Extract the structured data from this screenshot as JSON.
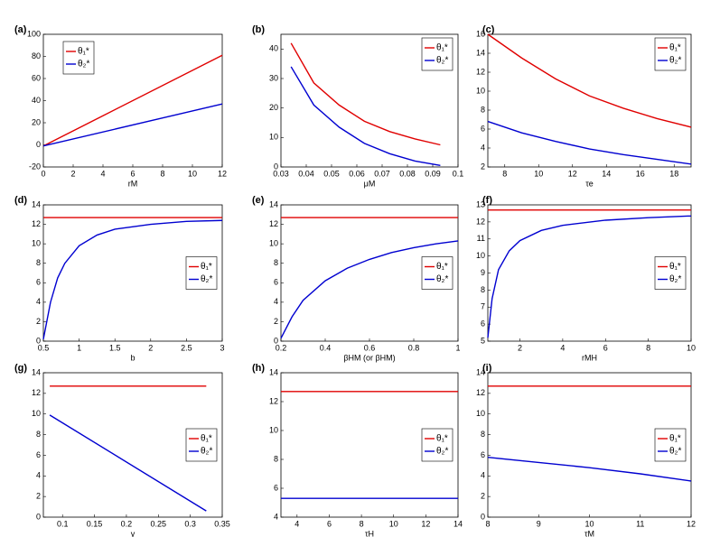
{
  "chart_data": [
    {
      "type": "line",
      "panel": "(a)",
      "xlabel": "rM",
      "xlim": [
        0,
        12
      ],
      "xticks": [
        0,
        2,
        4,
        6,
        8,
        10,
        12
      ],
      "ylim": [
        -20,
        100
      ],
      "yticks": [
        -20,
        0,
        20,
        40,
        60,
        80,
        100
      ],
      "legend": "upper left",
      "x": [
        0,
        12
      ],
      "series": [
        {
          "name": "θ₁*",
          "color": "#e00000",
          "values": [
            -1,
            81
          ]
        },
        {
          "name": "θ₂*",
          "color": "#0000d0",
          "values": [
            -1,
            37
          ]
        }
      ]
    },
    {
      "type": "line",
      "panel": "(b)",
      "xlabel": "μM",
      "xlim": [
        0.03,
        0.1
      ],
      "xticks": [
        0.03,
        0.04,
        0.05,
        0.06,
        0.07,
        0.08,
        0.09,
        0.1
      ],
      "ylim": [
        0,
        45
      ],
      "yticks": [
        0,
        10,
        20,
        30,
        40
      ],
      "legend": "upper right",
      "x": [
        0.034,
        0.043,
        0.053,
        0.063,
        0.073,
        0.083,
        0.093
      ],
      "series": [
        {
          "name": "θ₁*",
          "color": "#e00000",
          "values": [
            42,
            28.5,
            21,
            15.5,
            12,
            9.5,
            7.5
          ]
        },
        {
          "name": "θ₂*",
          "color": "#0000d0",
          "values": [
            34,
            21,
            13.5,
            8,
            4.5,
            2,
            0.5
          ]
        }
      ]
    },
    {
      "type": "line",
      "panel": "(c)",
      "xlabel": "τe",
      "xlim": [
        7,
        19
      ],
      "xticks": [
        8,
        10,
        12,
        14,
        16,
        18
      ],
      "ylim": [
        2,
        16
      ],
      "yticks": [
        2,
        4,
        6,
        8,
        10,
        12,
        14,
        16
      ],
      "legend": "upper right",
      "x": [
        7,
        9,
        11,
        13,
        15,
        17,
        19
      ],
      "series": [
        {
          "name": "θ₁*",
          "color": "#e00000",
          "values": [
            16,
            13.5,
            11.3,
            9.5,
            8.2,
            7.1,
            6.2
          ]
        },
        {
          "name": "θ₂*",
          "color": "#0000d0",
          "values": [
            6.8,
            5.6,
            4.7,
            3.9,
            3.3,
            2.8,
            2.3
          ]
        }
      ]
    },
    {
      "type": "line",
      "panel": "(d)",
      "xlabel": "b",
      "xlim": [
        0.5,
        3
      ],
      "xticks": [
        0.5,
        1,
        1.5,
        2,
        2.5,
        3
      ],
      "ylim": [
        0,
        14
      ],
      "yticks": [
        0,
        2,
        4,
        6,
        8,
        10,
        12,
        14
      ],
      "legend": "center right",
      "x": [
        0.5,
        0.6,
        0.7,
        0.8,
        1,
        1.25,
        1.5,
        2,
        2.5,
        3
      ],
      "series": [
        {
          "name": "θ₁*",
          "color": "#e00000",
          "values": [
            12.7,
            12.7,
            12.7,
            12.7,
            12.7,
            12.7,
            12.7,
            12.7,
            12.7,
            12.7
          ]
        },
        {
          "name": "θ₂*",
          "color": "#0000d0",
          "values": [
            0.2,
            4,
            6.5,
            8,
            9.8,
            10.9,
            11.5,
            12,
            12.3,
            12.4
          ]
        }
      ]
    },
    {
      "type": "line",
      "panel": "(e)",
      "xlabel": "βHM (or βHM)",
      "xlim": [
        0.2,
        1
      ],
      "xticks": [
        0.2,
        0.4,
        0.6,
        0.8,
        1
      ],
      "ylim": [
        0,
        14
      ],
      "yticks": [
        0,
        2,
        4,
        6,
        8,
        10,
        12,
        14
      ],
      "legend": "center right",
      "x": [
        0.2,
        0.25,
        0.3,
        0.4,
        0.5,
        0.6,
        0.7,
        0.8,
        0.9,
        1
      ],
      "series": [
        {
          "name": "θ₁*",
          "color": "#e00000",
          "values": [
            12.7,
            12.7,
            12.7,
            12.7,
            12.7,
            12.7,
            12.7,
            12.7,
            12.7,
            12.7
          ]
        },
        {
          "name": "θ₂*",
          "color": "#0000d0",
          "values": [
            0.3,
            2.5,
            4.2,
            6.2,
            7.5,
            8.4,
            9.1,
            9.6,
            10,
            10.3
          ]
        }
      ]
    },
    {
      "type": "line",
      "panel": "(f)",
      "xlabel": "rMH",
      "xlim": [
        0.5,
        10
      ],
      "xticks": [
        2,
        4,
        6,
        8,
        10
      ],
      "ylim": [
        5,
        13
      ],
      "yticks": [
        5,
        6,
        7,
        8,
        9,
        10,
        11,
        12,
        13
      ],
      "legend": "center right",
      "x": [
        0.5,
        0.7,
        1,
        1.5,
        2,
        3,
        4,
        6,
        8,
        10
      ],
      "series": [
        {
          "name": "θ₁*",
          "color": "#e00000",
          "values": [
            12.7,
            12.7,
            12.7,
            12.7,
            12.7,
            12.7,
            12.7,
            12.7,
            12.7,
            12.7
          ]
        },
        {
          "name": "θ₂*",
          "color": "#0000d0",
          "values": [
            5.2,
            7.5,
            9.2,
            10.3,
            10.9,
            11.5,
            11.8,
            12.1,
            12.25,
            12.35
          ]
        }
      ]
    },
    {
      "type": "line",
      "panel": "(g)",
      "xlabel": "γ",
      "xlim": [
        0.07,
        0.35
      ],
      "xticks": [
        0.1,
        0.15,
        0.2,
        0.25,
        0.3,
        0.35
      ],
      "ylim": [
        0,
        14
      ],
      "yticks": [
        0,
        2,
        4,
        6,
        8,
        10,
        12,
        14
      ],
      "legend": "center right",
      "x": [
        0.08,
        0.325
      ],
      "series": [
        {
          "name": "θ₁*",
          "color": "#e00000",
          "values": [
            12.7,
            12.7
          ]
        },
        {
          "name": "θ₂*",
          "color": "#0000d0",
          "values": [
            9.9,
            0.6
          ]
        }
      ]
    },
    {
      "type": "line",
      "panel": "(h)",
      "xlabel": "τH",
      "xlim": [
        3,
        14
      ],
      "xticks": [
        4,
        6,
        8,
        10,
        12,
        14
      ],
      "ylim": [
        4,
        14
      ],
      "yticks": [
        4,
        6,
        8,
        10,
        12,
        14
      ],
      "legend": "center right",
      "x": [
        3,
        14
      ],
      "series": [
        {
          "name": "θ₁*",
          "color": "#e00000",
          "values": [
            12.7,
            12.7
          ]
        },
        {
          "name": "θ₂*",
          "color": "#0000d0",
          "values": [
            5.3,
            5.3
          ]
        }
      ]
    },
    {
      "type": "line",
      "panel": "(i)",
      "xlabel": "τM",
      "xlim": [
        8,
        12
      ],
      "xticks": [
        8,
        9,
        10,
        11,
        12
      ],
      "ylim": [
        0,
        14
      ],
      "yticks": [
        0,
        2,
        4,
        6,
        8,
        10,
        12,
        14
      ],
      "legend": "center right",
      "x": [
        8,
        9,
        10,
        11,
        12
      ],
      "series": [
        {
          "name": "θ₁*",
          "color": "#e00000",
          "values": [
            12.7,
            12.7,
            12.7,
            12.7,
            12.7
          ]
        },
        {
          "name": "θ₂*",
          "color": "#0000d0",
          "values": [
            5.8,
            5.3,
            4.8,
            4.2,
            3.5
          ]
        }
      ]
    }
  ]
}
